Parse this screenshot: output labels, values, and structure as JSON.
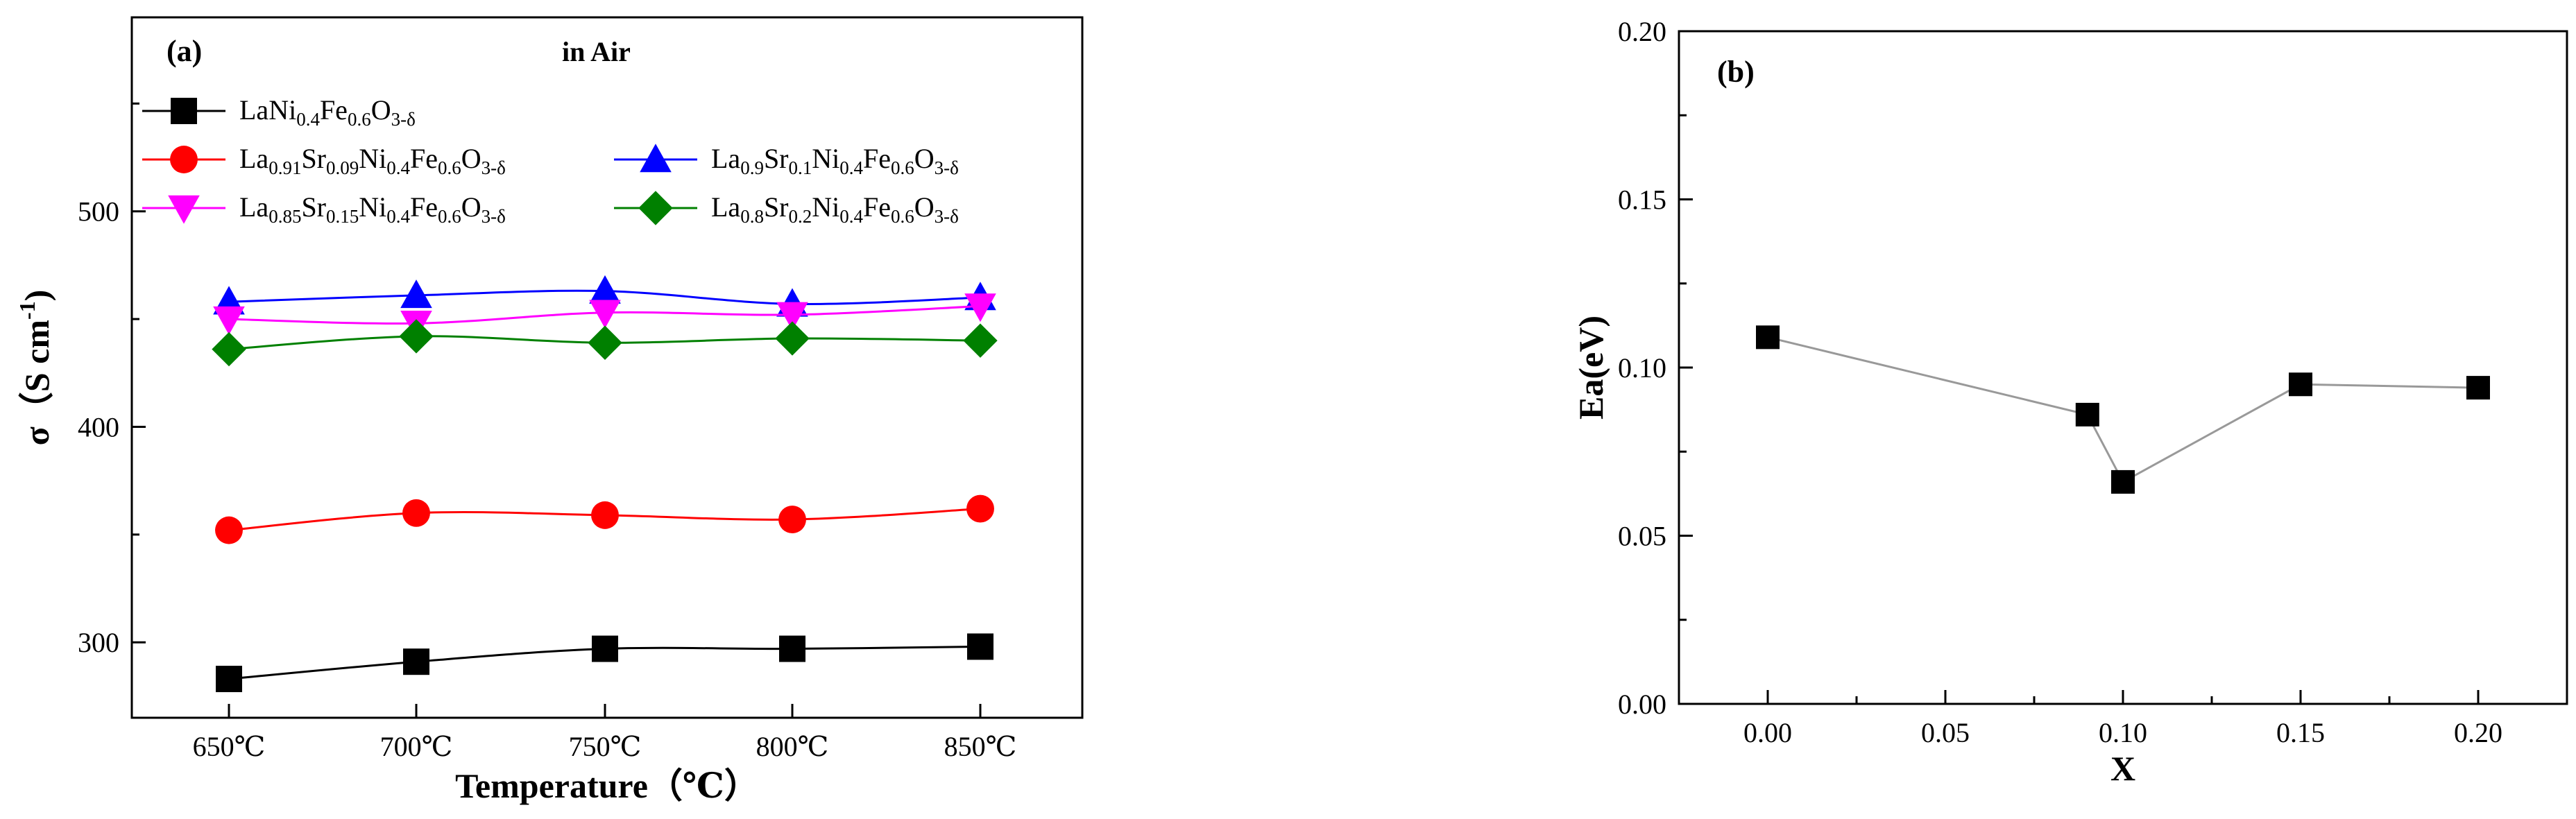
{
  "chart_data": [
    {
      "panel_label": "(a)",
      "type": "line",
      "annotation": "in Air",
      "xlabel": "Temperature（℃）",
      "ylabel_parts": [
        "σ（S cm",
        "-1",
        ")"
      ],
      "categories": [
        "650℃",
        "700℃",
        "750℃",
        "800℃",
        "850℃"
      ],
      "ylim": [
        265,
        590
      ],
      "yticks": [
        300,
        400,
        500
      ],
      "legend_placement": "top",
      "series": [
        {
          "name": "LaNi0.4Fe0.6O3-δ",
          "name_parts": [
            [
              "La",
              ""
            ],
            [
              "Ni",
              ""
            ],
            [
              "0.4",
              "sub"
            ],
            [
              "Fe",
              ""
            ],
            [
              "0.6",
              "sub"
            ],
            [
              "O",
              ""
            ],
            [
              "3-δ",
              "sub"
            ]
          ],
          "color": "#000000",
          "marker": "square",
          "values": [
            283,
            291,
            297,
            297,
            298
          ]
        },
        {
          "name": "La0.91Sr0.09Ni0.4Fe0.6O3-δ",
          "name_parts": [
            [
              "La",
              ""
            ],
            [
              "0.91",
              "sub"
            ],
            [
              "Sr",
              ""
            ],
            [
              "0.09",
              "sub"
            ],
            [
              "Ni",
              ""
            ],
            [
              "0.4",
              "sub"
            ],
            [
              "Fe",
              ""
            ],
            [
              "0.6",
              "sub"
            ],
            [
              "O",
              ""
            ],
            [
              "3-δ",
              "sub"
            ]
          ],
          "color": "#ff0000",
          "marker": "circle",
          "values": [
            352,
            360,
            359,
            357,
            362
          ]
        },
        {
          "name": "La0.9Sr0.1Ni0.4Fe0.6O3-δ",
          "name_parts": [
            [
              "La",
              ""
            ],
            [
              "0.9",
              "sub"
            ],
            [
              "Sr",
              ""
            ],
            [
              "0.1",
              "sub"
            ],
            [
              "Ni",
              ""
            ],
            [
              "0.4",
              "sub"
            ],
            [
              "Fe",
              ""
            ],
            [
              "0.6",
              "sub"
            ],
            [
              "O",
              ""
            ],
            [
              "3-δ",
              "sub"
            ]
          ],
          "color": "#0000ff",
          "marker": "triangle-up",
          "values": [
            458,
            461,
            463,
            457,
            460
          ]
        },
        {
          "name": "La0.85Sr0.15Ni0.4Fe0.6O3-δ",
          "name_parts": [
            [
              "La",
              ""
            ],
            [
              "0.85",
              "sub"
            ],
            [
              "Sr",
              ""
            ],
            [
              "0.15",
              "sub"
            ],
            [
              "Ni",
              ""
            ],
            [
              "0.4",
              "sub"
            ],
            [
              "Fe",
              ""
            ],
            [
              "0.6",
              "sub"
            ],
            [
              "O",
              ""
            ],
            [
              "3-δ",
              "sub"
            ]
          ],
          "color": "#ff00ff",
          "marker": "triangle-down",
          "values": [
            450,
            448,
            453,
            452,
            456
          ]
        },
        {
          "name": "La0.8Sr0.2Ni0.4Fe0.6O3-δ",
          "name_parts": [
            [
              "La",
              ""
            ],
            [
              "0.8",
              "sub"
            ],
            [
              "Sr",
              ""
            ],
            [
              "0.2",
              "sub"
            ],
            [
              "Ni",
              ""
            ],
            [
              "0.4",
              "sub"
            ],
            [
              "Fe",
              ""
            ],
            [
              "0.6",
              "sub"
            ],
            [
              "O",
              ""
            ],
            [
              "3-δ",
              "sub"
            ]
          ],
          "color": "#008000",
          "marker": "diamond",
          "values": [
            436,
            442,
            439,
            441,
            440
          ]
        }
      ]
    },
    {
      "panel_label": "(b)",
      "type": "scatter",
      "xlabel": "X",
      "ylabel": "Ea(eV)",
      "xlim": [
        -0.025,
        0.225
      ],
      "ylim": [
        0,
        0.2
      ],
      "xticks": [
        "0.00",
        "0.05",
        "0.10",
        "0.15",
        "0.20"
      ],
      "yticks": [
        "0.00",
        "0.05",
        "0.10",
        "0.15",
        "0.20"
      ],
      "connect_line_color": "#999999",
      "marker_color": "#000000",
      "marker": "square",
      "x": [
        0,
        0.09,
        0.1,
        0.15,
        0.2
      ],
      "y": [
        0.109,
        0.086,
        0.066,
        0.095,
        0.094
      ]
    }
  ]
}
